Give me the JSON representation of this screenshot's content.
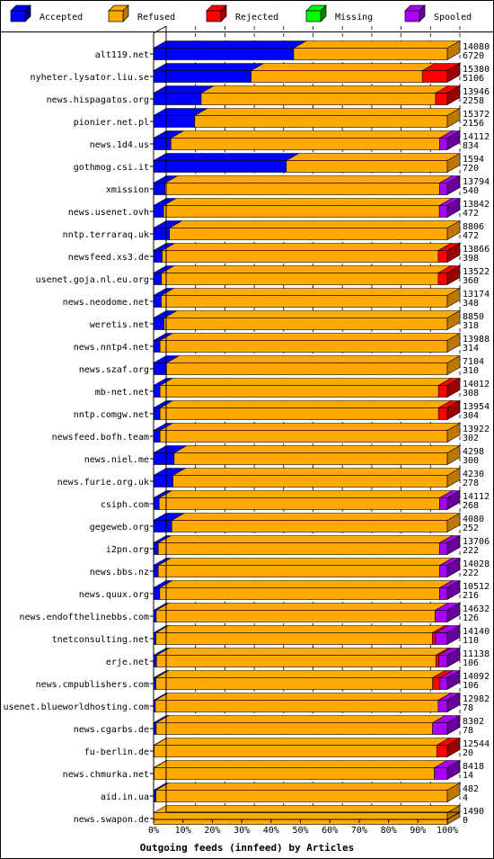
{
  "chart_data": {
    "type": "bar",
    "orientation": "horizontal",
    "stacked": true,
    "title": "Outgoing feeds (innfeed) by Articles",
    "legend_position": "top",
    "grid": true,
    "xlim": [
      0,
      100
    ],
    "x_ticks": [
      "0%",
      "10%",
      "20%",
      "30%",
      "40%",
      "50%",
      "60%",
      "70%",
      "80%",
      "90%",
      "100%"
    ],
    "series": [
      {
        "name": "Accepted",
        "color": "#0000ff",
        "side": "#000088"
      },
      {
        "name": "Refused",
        "color": "#ffaa00",
        "side": "#bb7700"
      },
      {
        "name": "Rejected",
        "color": "#ff0000",
        "side": "#990000"
      },
      {
        "name": "Missing",
        "color": "#00ff00",
        "side": "#008800"
      },
      {
        "name": "Spooled",
        "color": "#aa00ff",
        "side": "#660099"
      }
    ],
    "rows": [
      {
        "label": "alt119.net",
        "total": "14080",
        "accepted": "6720",
        "pct": [
          47.7,
          52.3,
          0,
          0,
          0
        ]
      },
      {
        "label": "nyheter.lysator.liu.se",
        "total": "15380",
        "accepted": "5106",
        "pct": [
          33.2,
          58.3,
          8.5,
          0,
          0
        ]
      },
      {
        "label": "news.hispagatos.org",
        "total": "13946",
        "accepted": "2258",
        "pct": [
          16.2,
          79.8,
          4.0,
          0,
          0
        ]
      },
      {
        "label": "pionier.net.pl",
        "total": "15372",
        "accepted": "2156",
        "pct": [
          14.0,
          86.0,
          0,
          0,
          0
        ]
      },
      {
        "label": "news.1d4.us",
        "total": "14112",
        "accepted": "834",
        "pct": [
          5.9,
          91.5,
          0,
          0,
          2.6
        ]
      },
      {
        "label": "gothmog.csi.it",
        "total": "1594",
        "accepted": "720",
        "pct": [
          45.2,
          54.8,
          0,
          0,
          0
        ]
      },
      {
        "label": "xmission",
        "total": "13794",
        "accepted": "540",
        "pct": [
          3.9,
          93.5,
          0,
          0,
          2.6
        ]
      },
      {
        "label": "news.usenet.ovh",
        "total": "13842",
        "accepted": "472",
        "pct": [
          3.4,
          93.9,
          0,
          0,
          2.7
        ]
      },
      {
        "label": "nntp.terraraq.uk",
        "total": "8806",
        "accepted": "472",
        "pct": [
          5.4,
          94.6,
          0,
          0,
          0
        ]
      },
      {
        "label": "newsfeed.xs3.de",
        "total": "13866",
        "accepted": "398",
        "pct": [
          2.9,
          94.0,
          3.1,
          0,
          0
        ]
      },
      {
        "label": "usenet.goja.nl.eu.org",
        "total": "13522",
        "accepted": "360",
        "pct": [
          2.7,
          94.2,
          3.1,
          0,
          0
        ]
      },
      {
        "label": "news.neodome.net",
        "total": "13174",
        "accepted": "348",
        "pct": [
          2.6,
          97.4,
          0,
          0,
          0
        ]
      },
      {
        "label": "weretis.net",
        "total": "8850",
        "accepted": "318",
        "pct": [
          3.6,
          96.4,
          0,
          0,
          0
        ]
      },
      {
        "label": "news.nntp4.net",
        "total": "13988",
        "accepted": "314",
        "pct": [
          2.2,
          97.8,
          0,
          0,
          0
        ]
      },
      {
        "label": "news.szaf.org",
        "total": "7104",
        "accepted": "310",
        "pct": [
          4.4,
          95.6,
          0,
          0,
          0
        ]
      },
      {
        "label": "mb-net.net",
        "total": "14012",
        "accepted": "308",
        "pct": [
          2.2,
          94.8,
          3.0,
          0,
          0
        ]
      },
      {
        "label": "nntp.comgw.net",
        "total": "13954",
        "accepted": "304",
        "pct": [
          2.2,
          94.8,
          3.0,
          0,
          0
        ]
      },
      {
        "label": "newsfeed.bofh.team",
        "total": "13922",
        "accepted": "302",
        "pct": [
          2.2,
          97.8,
          0,
          0,
          0
        ]
      },
      {
        "label": "news.niel.me",
        "total": "4298",
        "accepted": "300",
        "pct": [
          7.0,
          93.0,
          0,
          0,
          0
        ]
      },
      {
        "label": "news.furie.org.uk",
        "total": "4230",
        "accepted": "278",
        "pct": [
          6.6,
          93.4,
          0,
          0,
          0
        ]
      },
      {
        "label": "csiph.com",
        "total": "14112",
        "accepted": "268",
        "pct": [
          1.9,
          95.5,
          0,
          0,
          2.6
        ]
      },
      {
        "label": "gegeweb.org",
        "total": "4080",
        "accepted": "252",
        "pct": [
          6.2,
          93.8,
          0,
          0,
          0
        ]
      },
      {
        "label": "i2pn.org",
        "total": "13706",
        "accepted": "222",
        "pct": [
          1.6,
          95.8,
          0,
          0,
          2.6
        ]
      },
      {
        "label": "news.bbs.nz",
        "total": "14028",
        "accepted": "222",
        "pct": [
          1.6,
          95.8,
          0,
          0,
          2.6
        ]
      },
      {
        "label": "news.quux.org",
        "total": "10512",
        "accepted": "216",
        "pct": [
          2.1,
          95.3,
          0,
          0,
          2.6
        ]
      },
      {
        "label": "news.endofthelinebbs.com",
        "total": "14632",
        "accepted": "126",
        "pct": [
          0.9,
          95.0,
          0,
          0,
          4.1
        ]
      },
      {
        "label": "tnetconsulting.net",
        "total": "14140",
        "accepted": "110",
        "pct": [
          0.8,
          94.1,
          1.1,
          0,
          4.0
        ]
      },
      {
        "label": "erje.net",
        "total": "11138",
        "accepted": "106",
        "pct": [
          1.0,
          95.1,
          1.0,
          0,
          2.9
        ]
      },
      {
        "label": "news.cmpublishers.com",
        "total": "14092",
        "accepted": "106",
        "pct": [
          0.8,
          94.2,
          2.5,
          0,
          2.5
        ]
      },
      {
        "label": "usenet.blueworldhosting.com",
        "total": "12982",
        "accepted": "78",
        "pct": [
          0.6,
          96.3,
          0,
          0,
          3.1
        ]
      },
      {
        "label": "news.cgarbs.de",
        "total": "8302",
        "accepted": "78",
        "pct": [
          0.9,
          94.1,
          0,
          0,
          5.0
        ]
      },
      {
        "label": "fu-berlin.de",
        "total": "12544",
        "accepted": "20",
        "pct": [
          0.2,
          96.2,
          3.6,
          0,
          0
        ]
      },
      {
        "label": "news.chmurka.net",
        "total": "8418",
        "accepted": "14",
        "pct": [
          0.2,
          95.4,
          0,
          0,
          4.4
        ]
      },
      {
        "label": "aid.in.ua",
        "total": "482",
        "accepted": "4",
        "pct": [
          0.8,
          99.2,
          0,
          0,
          0
        ]
      },
      {
        "label": "news.swapon.de",
        "total": "1490",
        "accepted": "0",
        "pct": [
          0,
          100,
          0,
          0,
          0
        ]
      }
    ]
  }
}
